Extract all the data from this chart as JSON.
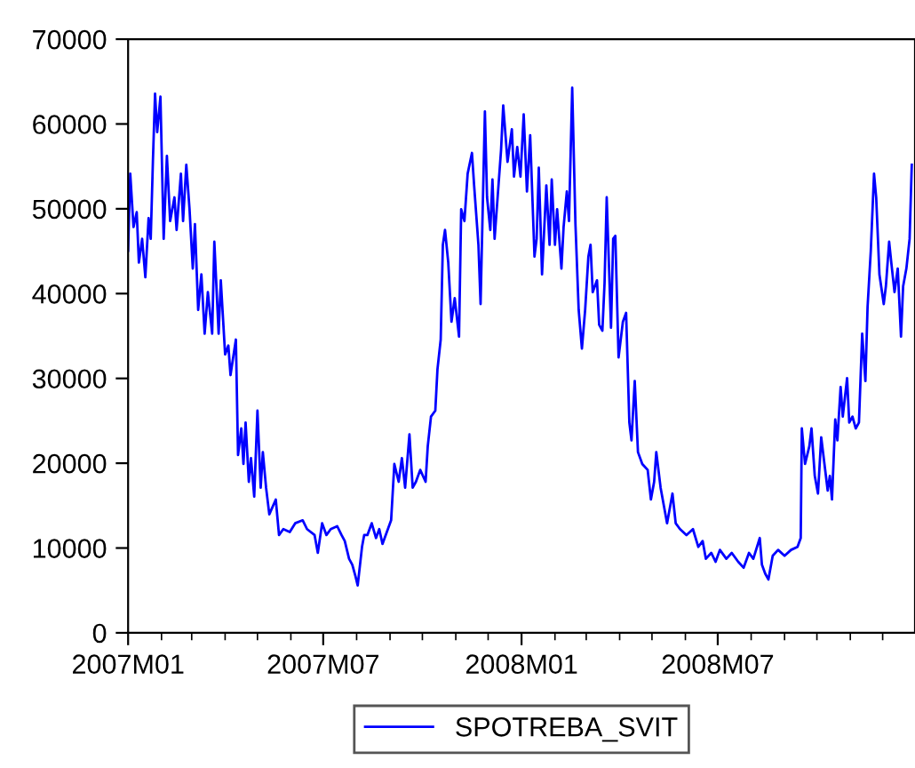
{
  "chart_data": {
    "type": "line",
    "legend": "bottom",
    "grid": false,
    "marker": "none",
    "line_style": "solid",
    "xlim": [
      "2007-01-01",
      "2008-12-31"
    ],
    "xticks": [
      {
        "value": "2007-01-01",
        "label": "2007M01"
      },
      {
        "value": "2007-02-01",
        "label": null
      },
      {
        "value": "2007-03-01",
        "label": null
      },
      {
        "value": "2007-04-01",
        "label": null
      },
      {
        "value": "2007-05-01",
        "label": null
      },
      {
        "value": "2007-06-01",
        "label": null
      },
      {
        "value": "2007-07-01",
        "label": "2007M07"
      },
      {
        "value": "2007-08-01",
        "label": null
      },
      {
        "value": "2007-09-01",
        "label": null
      },
      {
        "value": "2007-10-01",
        "label": null
      },
      {
        "value": "2007-11-01",
        "label": null
      },
      {
        "value": "2007-12-01",
        "label": null
      },
      {
        "value": "2008-01-01",
        "label": "2008M01"
      },
      {
        "value": "2008-02-01",
        "label": null
      },
      {
        "value": "2008-03-01",
        "label": null
      },
      {
        "value": "2008-04-01",
        "label": null
      },
      {
        "value": "2008-05-01",
        "label": null
      },
      {
        "value": "2008-06-01",
        "label": null
      },
      {
        "value": "2008-07-01",
        "label": "2008M07"
      },
      {
        "value": "2008-08-01",
        "label": null
      },
      {
        "value": "2008-09-01",
        "label": null
      },
      {
        "value": "2008-10-01",
        "label": null
      },
      {
        "value": "2008-11-01",
        "label": null
      },
      {
        "value": "2008-12-01",
        "label": null
      }
    ],
    "ylim": [
      0,
      70000
    ],
    "yticks": [
      0,
      10000,
      20000,
      30000,
      40000,
      50000,
      60000,
      70000
    ],
    "x": [
      "2007-01-01",
      "2007-01-03",
      "2007-01-06",
      "2007-01-09",
      "2007-01-11",
      "2007-01-14",
      "2007-01-17",
      "2007-01-20",
      "2007-01-22",
      "2007-01-24",
      "2007-01-26",
      "2007-01-28",
      "2007-01-31",
      "2007-02-03",
      "2007-02-06",
      "2007-02-09",
      "2007-02-13",
      "2007-02-15",
      "2007-02-19",
      "2007-02-21",
      "2007-02-24",
      "2007-02-27",
      "2007-03-02",
      "2007-03-04",
      "2007-03-07",
      "2007-03-10",
      "2007-03-13",
      "2007-03-16",
      "2007-03-20",
      "2007-03-22",
      "2007-03-26",
      "2007-03-28",
      "2007-04-01",
      "2007-04-04",
      "2007-04-06",
      "2007-04-11",
      "2007-04-13",
      "2007-04-16",
      "2007-04-18",
      "2007-04-20",
      "2007-04-23",
      "2007-04-25",
      "2007-04-28",
      "2007-05-01",
      "2007-05-04",
      "2007-05-06",
      "2007-05-09",
      "2007-05-12",
      "2007-05-18",
      "2007-05-21",
      "2007-05-25",
      "2007-05-31",
      "2007-06-05",
      "2007-06-12",
      "2007-06-16",
      "2007-06-23",
      "2007-06-26",
      "2007-06-30",
      "2007-07-04",
      "2007-07-08",
      "2007-07-14",
      "2007-07-18",
      "2007-07-21",
      "2007-07-25",
      "2007-07-28",
      "2007-07-31",
      "2007-08-02",
      "2007-08-06",
      "2007-08-08",
      "2007-08-11",
      "2007-08-15",
      "2007-08-19",
      "2007-08-22",
      "2007-08-25",
      "2007-08-30",
      "2007-09-02",
      "2007-09-05",
      "2007-09-09",
      "2007-09-12",
      "2007-09-15",
      "2007-09-19",
      "2007-09-22",
      "2007-09-25",
      "2007-09-29",
      "2007-10-04",
      "2007-10-06",
      "2007-10-09",
      "2007-10-13",
      "2007-10-15",
      "2007-10-18",
      "2007-10-20",
      "2007-10-22",
      "2007-10-25",
      "2007-10-28",
      "2007-10-31",
      "2007-11-04",
      "2007-11-06",
      "2007-11-09",
      "2007-11-12",
      "2007-11-16",
      "2007-11-18",
      "2007-11-22",
      "2007-11-24",
      "2007-11-28",
      "2007-11-30",
      "2007-12-03",
      "2007-12-05",
      "2007-12-07",
      "2007-12-13",
      "2007-12-15",
      "2007-12-19",
      "2007-12-23",
      "2007-12-25",
      "2007-12-28",
      "2007-12-31",
      "2008-01-03",
      "2008-01-06",
      "2008-01-09",
      "2008-01-13",
      "2008-01-15",
      "2008-01-17",
      "2008-01-20",
      "2008-01-24",
      "2008-01-27",
      "2008-01-29",
      "2008-02-01",
      "2008-02-03",
      "2008-02-07",
      "2008-02-09",
      "2008-02-12",
      "2008-02-14",
      "2008-02-17",
      "2008-02-20",
      "2008-02-23",
      "2008-02-26",
      "2008-02-29",
      "2008-03-03",
      "2008-03-05",
      "2008-03-07",
      "2008-03-11",
      "2008-03-13",
      "2008-03-16",
      "2008-03-18",
      "2008-03-20",
      "2008-03-24",
      "2008-03-26",
      "2008-03-28",
      "2008-03-31",
      "2008-04-04",
      "2008-04-07",
      "2008-04-10",
      "2008-04-12",
      "2008-04-15",
      "2008-04-18",
      "2008-04-22",
      "2008-04-27",
      "2008-04-30",
      "2008-05-03",
      "2008-05-05",
      "2008-05-09",
      "2008-05-12",
      "2008-05-15",
      "2008-05-20",
      "2008-05-23",
      "2008-05-27",
      "2008-06-02",
      "2008-06-08",
      "2008-06-13",
      "2008-06-17",
      "2008-06-20",
      "2008-06-25",
      "2008-06-29",
      "2008-07-03",
      "2008-07-09",
      "2008-07-14",
      "2008-07-20",
      "2008-07-25",
      "2008-07-30",
      "2008-08-03",
      "2008-08-09",
      "2008-08-11",
      "2008-08-14",
      "2008-08-17",
      "2008-08-21",
      "2008-08-26",
      "2008-09-01",
      "2008-09-07",
      "2008-09-13",
      "2008-09-16",
      "2008-09-17",
      "2008-09-20",
      "2008-09-24",
      "2008-09-26",
      "2008-09-29",
      "2008-10-02",
      "2008-10-05",
      "2008-10-08",
      "2008-10-11",
      "2008-10-13",
      "2008-10-15",
      "2008-10-18",
      "2008-10-20",
      "2008-10-23",
      "2008-10-25",
      "2008-10-29",
      "2008-10-31",
      "2008-11-03",
      "2008-11-06",
      "2008-11-09",
      "2008-11-12",
      "2008-11-15",
      "2008-11-17",
      "2008-11-20",
      "2008-11-23",
      "2008-11-25",
      "2008-11-28",
      "2008-12-02",
      "2008-12-04",
      "2008-12-07",
      "2008-12-09",
      "2008-12-12",
      "2008-12-15",
      "2008-12-18",
      "2008-12-20",
      "2008-12-23",
      "2008-12-26",
      "2008-12-28"
    ],
    "series": [
      {
        "name": "SPOTREBA_SVIT",
        "color": "#0000ff",
        "values": [
          45060,
          54140,
          47850,
          49600,
          43660,
          46460,
          41920,
          48900,
          46460,
          55540,
          63570,
          59030,
          63220,
          46460,
          56240,
          48550,
          51350,
          47500,
          54140,
          48550,
          55190,
          49950,
          42960,
          48200,
          38070,
          42260,
          35280,
          40170,
          35280,
          46110,
          35280,
          41570,
          32830,
          33880,
          30390,
          34580,
          20960,
          24100,
          19910,
          24800,
          17810,
          20610,
          16070,
          26200,
          17110,
          21310,
          17110,
          13970,
          15720,
          11530,
          12230,
          11880,
          12920,
          13270,
          12230,
          11530,
          9430,
          12920,
          11530,
          12230,
          12570,
          11530,
          10830,
          8730,
          8030,
          6640,
          5590,
          10130,
          11530,
          11530,
          12920,
          11180,
          12230,
          10480,
          12230,
          13270,
          19910,
          17810,
          20610,
          17110,
          23400,
          17110,
          17810,
          19210,
          17810,
          22010,
          25500,
          26200,
          31090,
          34580,
          45760,
          47500,
          43660,
          36680,
          39470,
          34930,
          49950,
          48550,
          54140,
          56590,
          52750,
          45760,
          38770,
          61480,
          51350,
          47500,
          53450,
          46460,
          56940,
          62180,
          55540,
          59380,
          53790,
          57290,
          53790,
          61130,
          52050,
          58680,
          44360,
          46460,
          54840,
          42260,
          52750,
          45760,
          53450,
          45760,
          49950,
          42960,
          47850,
          52050,
          48550,
          64270,
          48200,
          38070,
          33530,
          38070,
          44360,
          45760,
          40170,
          41570,
          36330,
          35630,
          41220,
          51350,
          35980,
          46460,
          46810,
          32480,
          36680,
          37720,
          24800,
          22700,
          29690,
          21310,
          19910,
          19210,
          15720,
          17810,
          21310,
          17110,
          15020,
          12920,
          16420,
          12920,
          12230,
          11530,
          12230,
          10130,
          10830,
          8730,
          9430,
          8380,
          9780,
          8730,
          9430,
          8380,
          7680,
          9430,
          8730,
          11180,
          8030,
          6990,
          6290,
          9080,
          9780,
          9080,
          9780,
          10130,
          11180,
          24100,
          19910,
          22010,
          24100,
          18510,
          16420,
          23050,
          19910,
          16770,
          18510,
          15720,
          25150,
          22700,
          28990,
          25500,
          30040,
          24800,
          25500,
          24100,
          24800,
          35280,
          29690,
          38420,
          45060,
          54140,
          51350,
          42260,
          38770,
          40870,
          46110,
          43660,
          40170,
          42960,
          34930,
          40870,
          42960,
          46460,
          55190
        ]
      }
    ]
  }
}
